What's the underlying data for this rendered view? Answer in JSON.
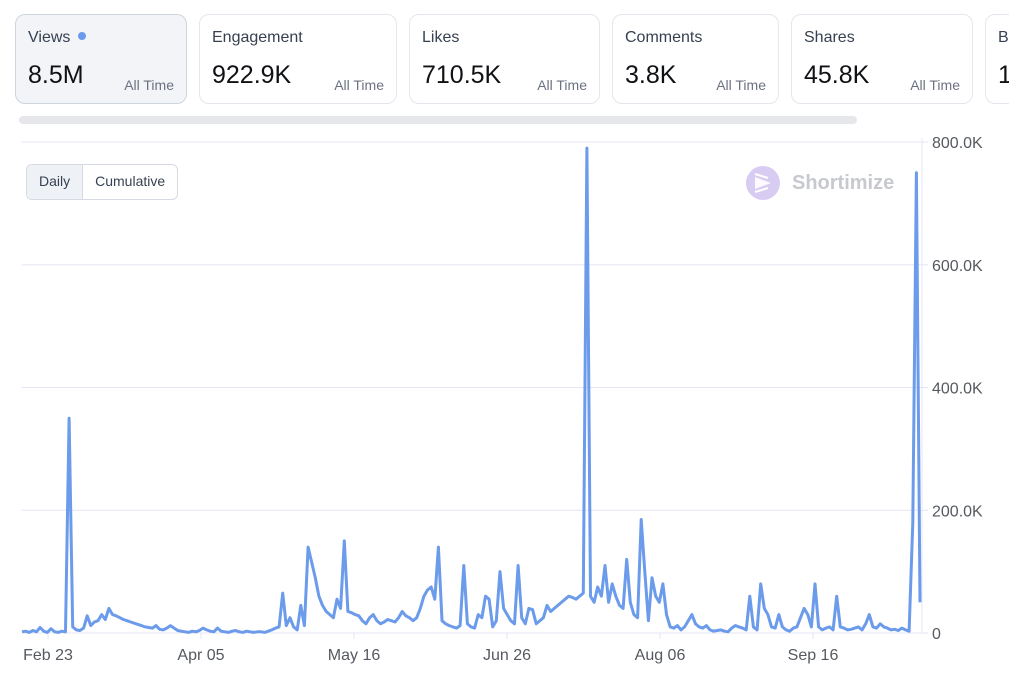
{
  "metrics": [
    {
      "label": "Views",
      "value": "8.5M",
      "period": "All Time",
      "active": true
    },
    {
      "label": "Engagement",
      "value": "922.9K",
      "period": "All Time"
    },
    {
      "label": "Likes",
      "value": "710.5K",
      "period": "All Time"
    },
    {
      "label": "Comments",
      "value": "3.8K",
      "period": "All Time"
    },
    {
      "label": "Shares",
      "value": "45.8K",
      "period": "All Time"
    },
    {
      "label": "B",
      "value": "1",
      "period": ""
    }
  ],
  "toggle": {
    "daily": "Daily",
    "cumulative": "Cumulative",
    "selected": "Daily"
  },
  "watermark": {
    "text": "Shortimize"
  },
  "colors": {
    "line": "#6b9bea",
    "grid": "#e4e6f4",
    "accent_dot": "#6b9bea"
  },
  "chart_data": {
    "type": "line",
    "series": [
      {
        "values": [
          2000,
          3000,
          1000,
          4000,
          2000,
          9000,
          3000,
          1000,
          7000,
          2000,
          1000,
          3000,
          2000,
          350000,
          10000,
          5000,
          4000,
          8000,
          28000,
          12000,
          18000,
          20000,
          30000,
          22000,
          40000,
          30000,
          28000,
          25000,
          22000,
          20000,
          18000,
          16000,
          14000,
          12000,
          10000,
          9000,
          8000,
          12000,
          6000,
          5000,
          8000,
          12000,
          8000,
          4000,
          3000,
          2000,
          1000,
          3000,
          2000,
          4000,
          8000,
          5000,
          3000,
          2000,
          8000,
          3000,
          2000,
          1000,
          3000,
          4000,
          2000,
          1000,
          3000,
          2000,
          1000,
          2000,
          2000,
          1000,
          3000,
          5000,
          8000,
          10000,
          65000,
          12000,
          25000,
          10000,
          5000,
          45000,
          12000,
          140000,
          115000,
          90000,
          60000,
          45000,
          35000,
          30000,
          25000,
          55000,
          40000,
          150000,
          35000,
          33000,
          30000,
          28000,
          20000,
          15000,
          25000,
          30000,
          20000,
          15000,
          18000,
          22000,
          20000,
          18000,
          25000,
          35000,
          28000,
          25000,
          20000,
          25000,
          40000,
          60000,
          70000,
          75000,
          55000,
          140000,
          20000,
          15000,
          12000,
          10000,
          8000,
          12000,
          110000,
          15000,
          10000,
          8000,
          30000,
          25000,
          60000,
          55000,
          10000,
          20000,
          100000,
          40000,
          30000,
          20000,
          15000,
          110000,
          25000,
          15000,
          40000,
          38000,
          15000,
          20000,
          25000,
          45000,
          35000,
          40000,
          45000,
          50000,
          55000,
          60000,
          58000,
          55000,
          60000,
          65000,
          790000,
          60000,
          50000,
          75000,
          60000,
          110000,
          50000,
          80000,
          60000,
          45000,
          40000,
          120000,
          50000,
          30000,
          25000,
          185000,
          100000,
          20000,
          90000,
          60000,
          50000,
          80000,
          30000,
          10000,
          8000,
          12000,
          5000,
          10000,
          20000,
          30000,
          15000,
          10000,
          8000,
          12000,
          5000,
          3000,
          4000,
          5000,
          3000,
          2000,
          8000,
          12000,
          10000,
          8000,
          5000,
          60000,
          10000,
          5000,
          80000,
          40000,
          30000,
          10000,
          8000,
          30000,
          10000,
          5000,
          3000,
          8000,
          10000,
          25000,
          40000,
          30000,
          10000,
          80000,
          10000,
          5000,
          8000,
          10000,
          5000,
          60000,
          10000,
          8000,
          5000,
          6000,
          8000,
          10000,
          5000,
          15000,
          30000,
          10000,
          8000,
          15000,
          10000,
          8000,
          5000,
          6000,
          4000,
          8000,
          5000,
          3000,
          180000,
          750000,
          50000
        ]
      }
    ],
    "x_tick_labels": [
      "Feb 23",
      "Apr 05",
      "May 16",
      "Jun 26",
      "Aug 06",
      "Sep 16"
    ],
    "y_tick_labels": [
      "0",
      "200.0K",
      "400.0K",
      "600.0K",
      "800.0K"
    ],
    "ylim": [
      0,
      800000
    ],
    "grid": true
  }
}
